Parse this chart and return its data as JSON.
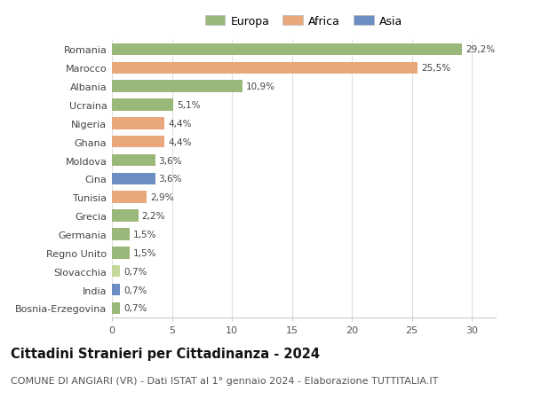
{
  "countries": [
    "Bosnia-Erzegovina",
    "India",
    "Slovacchia",
    "Regno Unito",
    "Germania",
    "Grecia",
    "Tunisia",
    "Cina",
    "Moldova",
    "Ghana",
    "Nigeria",
    "Ucraina",
    "Albania",
    "Marocco",
    "Romania"
  ],
  "values": [
    0.7,
    0.7,
    0.7,
    1.5,
    1.5,
    2.2,
    2.9,
    3.6,
    3.6,
    4.4,
    4.4,
    5.1,
    10.9,
    25.5,
    29.2
  ],
  "labels": [
    "0,7%",
    "0,7%",
    "0,7%",
    "1,5%",
    "1,5%",
    "2,2%",
    "2,9%",
    "3,6%",
    "3,6%",
    "4,4%",
    "4,4%",
    "5,1%",
    "10,9%",
    "25,5%",
    "29,2%"
  ],
  "colors": [
    "#9ab87a",
    "#6b8fc2",
    "#c5d99a",
    "#9ab87a",
    "#9ab87a",
    "#9ab87a",
    "#e8a87c",
    "#6b8fc2",
    "#9ab87a",
    "#e8a87c",
    "#e8a87c",
    "#9ab87a",
    "#9ab87a",
    "#e8a87c",
    "#9ab87a"
  ],
  "continent": [
    "Europa",
    "Asia",
    "Europa",
    "Europa",
    "Europa",
    "Europa",
    "Africa",
    "Asia",
    "Europa",
    "Africa",
    "Africa",
    "Europa",
    "Europa",
    "Africa",
    "Europa"
  ],
  "legend_labels": [
    "Europa",
    "Africa",
    "Asia"
  ],
  "legend_colors": [
    "#9ab87a",
    "#e8a87c",
    "#6b8fc2"
  ],
  "title": "Cittadini Stranieri per Cittadinanza - 2024",
  "subtitle": "COMUNE DI ANGIARI (VR) - Dati ISTAT al 1° gennaio 2024 - Elaborazione TUTTITALIA.IT",
  "xlim": [
    0,
    32
  ],
  "xticks": [
    0,
    5,
    10,
    15,
    20,
    25,
    30
  ],
  "background_color": "#ffffff",
  "grid_color": "#e0e0e0",
  "bar_height": 0.65,
  "title_fontsize": 10.5,
  "subtitle_fontsize": 8,
  "label_fontsize": 7.5,
  "tick_fontsize": 8
}
